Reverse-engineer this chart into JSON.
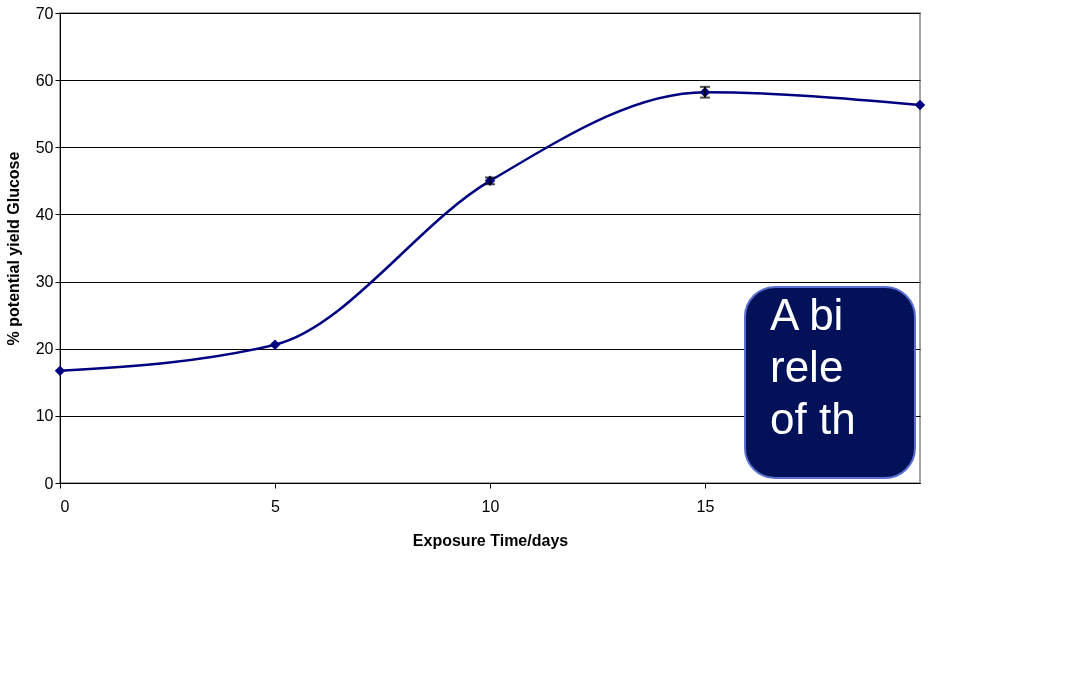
{
  "chart_data": {
    "type": "line",
    "xlabel": "Exposure Time/days",
    "ylabel": "% potential yield Glucose",
    "x": [
      0,
      5,
      10,
      15,
      20
    ],
    "series": [
      {
        "color": "#000080",
        "values": [
          16.7,
          20.6,
          45.0,
          58.2,
          56.3
        ],
        "errors": [
          null,
          null,
          0.5,
          0.8,
          null
        ]
      }
    ],
    "xlim": [
      0,
      20
    ],
    "xticks": [
      0,
      5,
      10,
      15
    ],
    "ylim": [
      0,
      70
    ],
    "yticks": [
      0,
      10,
      20,
      30,
      40,
      50,
      60,
      70
    ],
    "grid": "y",
    "marker": "diamond",
    "line_style": "solid",
    "annotations": [
      "A bi",
      "rele",
      "of th"
    ]
  }
}
